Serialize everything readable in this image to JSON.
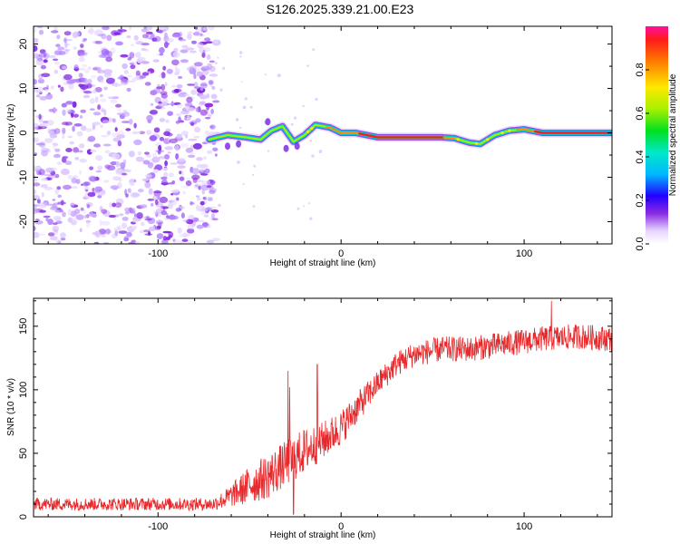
{
  "title": "S126.2025.339.21.00.E23",
  "chart_data": [
    {
      "type": "heatmap",
      "xlabel": "Height of straight line (km)",
      "ylabel": "Frequency (Hz)",
      "xlim": [
        -168,
        148
      ],
      "ylim": [
        -25,
        24
      ],
      "xticks": [
        -100,
        0,
        100
      ],
      "yticks": [
        -20,
        -10,
        0,
        10,
        20
      ],
      "noise_region_x": [
        -168,
        -68
      ],
      "ridge": [
        {
          "x": -72,
          "y": -1.5,
          "a": 0.35
        },
        {
          "x": -62,
          "y": -0.5,
          "a": 0.45
        },
        {
          "x": -52,
          "y": -1.0,
          "a": 0.5
        },
        {
          "x": -44,
          "y": -1.5,
          "a": 0.55
        },
        {
          "x": -38,
          "y": 0.5,
          "a": 0.5
        },
        {
          "x": -32,
          "y": 1.5,
          "a": 0.55
        },
        {
          "x": -26,
          "y": -2.0,
          "a": 0.5
        },
        {
          "x": -20,
          "y": -0.5,
          "a": 0.6
        },
        {
          "x": -14,
          "y": 1.8,
          "a": 0.75
        },
        {
          "x": -6,
          "y": 1.2,
          "a": 0.85
        },
        {
          "x": 0,
          "y": 0,
          "a": 0.9
        },
        {
          "x": 8,
          "y": 0,
          "a": 0.9
        },
        {
          "x": 20,
          "y": -1.0,
          "a": 0.92
        },
        {
          "x": 40,
          "y": -1.0,
          "a": 0.95
        },
        {
          "x": 55,
          "y": -1.0,
          "a": 0.9
        },
        {
          "x": 62,
          "y": -1.2,
          "a": 0.8
        },
        {
          "x": 70,
          "y": -2.2,
          "a": 0.75
        },
        {
          "x": 76,
          "y": -2.5,
          "a": 0.7
        },
        {
          "x": 84,
          "y": -0.5,
          "a": 0.75
        },
        {
          "x": 92,
          "y": 0.5,
          "a": 0.8
        },
        {
          "x": 100,
          "y": 0.8,
          "a": 0.85
        },
        {
          "x": 110,
          "y": 0.0,
          "a": 0.95
        },
        {
          "x": 130,
          "y": 0.0,
          "a": 0.97
        },
        {
          "x": 148,
          "y": 0.0,
          "a": 0.97
        }
      ]
    },
    {
      "type": "colorbar",
      "label": "Normalized spectral amplitude",
      "range": [
        0,
        1
      ],
      "ticks": [
        "0.0",
        "0.2",
        "0.4",
        "0.6",
        "0.8"
      ],
      "tick_values": [
        0,
        0.2,
        0.4,
        0.6,
        0.8
      ]
    },
    {
      "type": "line",
      "xlabel": "Height of straight line (km)",
      "ylabel": "SNR (10 * v/v)",
      "xlim": [
        -168,
        148
      ],
      "ylim": [
        0,
        172
      ],
      "xticks": [
        -100,
        0,
        100
      ],
      "yticks": [
        0,
        50,
        100,
        150
      ],
      "color": "#e8282b",
      "trend": [
        {
          "x": -168,
          "y": 10,
          "noise": 5
        },
        {
          "x": -70,
          "y": 10,
          "noise": 5
        },
        {
          "x": -62,
          "y": 15,
          "noise": 8
        },
        {
          "x": -50,
          "y": 25,
          "noise": 15
        },
        {
          "x": -40,
          "y": 32,
          "noise": 18
        },
        {
          "x": -30,
          "y": 42,
          "noise": 18
        },
        {
          "x": -20,
          "y": 52,
          "noise": 18
        },
        {
          "x": -10,
          "y": 60,
          "noise": 15
        },
        {
          "x": 0,
          "y": 70,
          "noise": 14
        },
        {
          "x": 10,
          "y": 88,
          "noise": 12
        },
        {
          "x": 20,
          "y": 105,
          "noise": 10
        },
        {
          "x": 30,
          "y": 120,
          "noise": 10
        },
        {
          "x": 40,
          "y": 128,
          "noise": 10
        },
        {
          "x": 55,
          "y": 132,
          "noise": 10
        },
        {
          "x": 70,
          "y": 132,
          "noise": 10
        },
        {
          "x": 90,
          "y": 136,
          "noise": 10
        },
        {
          "x": 110,
          "y": 140,
          "noise": 10
        },
        {
          "x": 130,
          "y": 142,
          "noise": 10
        },
        {
          "x": 148,
          "y": 140,
          "noise": 10
        }
      ],
      "spikes": [
        {
          "x": -29,
          "y": 115
        },
        {
          "x": -28,
          "y": 102
        },
        {
          "x": -13,
          "y": 120
        },
        {
          "x": -26,
          "y": 2
        },
        {
          "x": 115,
          "y": 170
        }
      ]
    }
  ],
  "colors": {
    "axis": "#000000",
    "line": "#e8282b",
    "noise": "#8a2be2"
  }
}
